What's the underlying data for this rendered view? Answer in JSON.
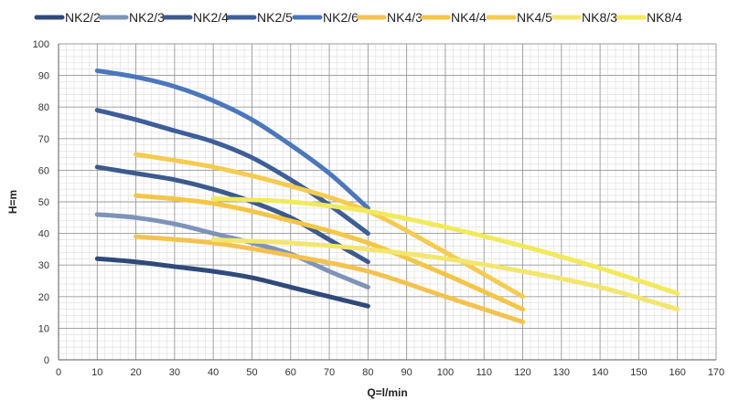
{
  "chart_data": {
    "type": "line",
    "title": "",
    "xlabel": "Q=l/min",
    "ylabel": "H=m",
    "xlim": [
      0,
      170
    ],
    "ylim": [
      0,
      100
    ],
    "xticks": [
      0,
      10,
      20,
      30,
      40,
      50,
      60,
      70,
      80,
      90,
      100,
      110,
      120,
      130,
      140,
      150,
      160,
      170
    ],
    "yticks": [
      0,
      10,
      20,
      30,
      40,
      50,
      60,
      70,
      80,
      90,
      100
    ],
    "grid": true,
    "legend_position": "top",
    "series": [
      {
        "name": "NK2/2",
        "color": "#2f4a7a",
        "points": [
          [
            10,
            32
          ],
          [
            20,
            31
          ],
          [
            30,
            29.5
          ],
          [
            40,
            28
          ],
          [
            50,
            26
          ],
          [
            60,
            23
          ],
          [
            70,
            20
          ],
          [
            80,
            17
          ]
        ]
      },
      {
        "name": "NK2/3",
        "color": "#7d94b8",
        "points": [
          [
            10,
            46
          ],
          [
            20,
            45
          ],
          [
            30,
            43
          ],
          [
            40,
            40
          ],
          [
            50,
            37
          ],
          [
            60,
            33.5
          ],
          [
            70,
            28
          ],
          [
            80,
            23
          ]
        ]
      },
      {
        "name": "NK2/4",
        "color": "#3b5a8e",
        "points": [
          [
            10,
            61
          ],
          [
            20,
            59
          ],
          [
            30,
            57
          ],
          [
            40,
            54
          ],
          [
            50,
            50
          ],
          [
            60,
            45
          ],
          [
            70,
            38
          ],
          [
            80,
            31
          ]
        ]
      },
      {
        "name": "NK2/5",
        "color": "#3d5e98",
        "points": [
          [
            10,
            79
          ],
          [
            20,
            76
          ],
          [
            30,
            72.5
          ],
          [
            40,
            69
          ],
          [
            50,
            64
          ],
          [
            60,
            57
          ],
          [
            70,
            49
          ],
          [
            80,
            40
          ]
        ]
      },
      {
        "name": "NK2/6",
        "color": "#4a77bd",
        "points": [
          [
            10,
            91.5
          ],
          [
            20,
            89.5
          ],
          [
            30,
            86.5
          ],
          [
            40,
            82
          ],
          [
            50,
            76
          ],
          [
            60,
            68
          ],
          [
            70,
            59
          ],
          [
            80,
            48
          ]
        ]
      },
      {
        "name": "NK4/3",
        "color": "#f3c24f",
        "points": [
          [
            20,
            39
          ],
          [
            40,
            37
          ],
          [
            60,
            33
          ],
          [
            80,
            28
          ],
          [
            100,
            20
          ],
          [
            120,
            12
          ]
        ]
      },
      {
        "name": "NK4/4",
        "color": "#f4c646",
        "points": [
          [
            20,
            52
          ],
          [
            40,
            49.5
          ],
          [
            60,
            44
          ],
          [
            80,
            37
          ],
          [
            100,
            27
          ],
          [
            120,
            16
          ]
        ]
      },
      {
        "name": "NK4/5",
        "color": "#f5cb50",
        "points": [
          [
            20,
            65
          ],
          [
            40,
            61
          ],
          [
            60,
            55
          ],
          [
            80,
            47
          ],
          [
            100,
            34
          ],
          [
            120,
            20
          ]
        ]
      },
      {
        "name": "NK8/3",
        "color": "#f3e66e",
        "points": [
          [
            40,
            38
          ],
          [
            60,
            37
          ],
          [
            80,
            35
          ],
          [
            100,
            32
          ],
          [
            120,
            28
          ],
          [
            140,
            23
          ],
          [
            160,
            16
          ]
        ]
      },
      {
        "name": "NK8/4",
        "color": "#f1ea5c",
        "points": [
          [
            40,
            51
          ],
          [
            60,
            50
          ],
          [
            80,
            47
          ],
          [
            100,
            42
          ],
          [
            120,
            36
          ],
          [
            140,
            29
          ],
          [
            160,
            21
          ]
        ]
      }
    ]
  }
}
